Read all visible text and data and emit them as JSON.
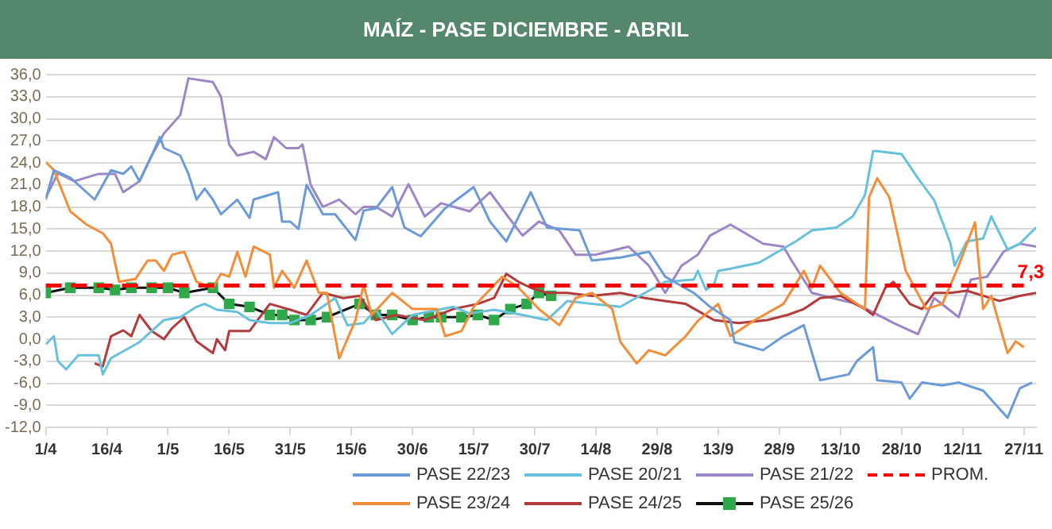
{
  "chart_data": {
    "type": "line",
    "title": "MAÍZ - PASE DICIEMBRE  - ABRIL",
    "xlim": [
      "--04-01",
      "--11-30"
    ],
    "xticks": [
      {
        "value": "--04-01",
        "label": "1/4"
      },
      {
        "value": "--04-16",
        "label": "16/4"
      },
      {
        "value": "--05-01",
        "label": "1/5"
      },
      {
        "value": "--05-16",
        "label": "16/5"
      },
      {
        "value": "--05-31",
        "label": "31/5"
      },
      {
        "value": "--06-15",
        "label": "15/6"
      },
      {
        "value": "--06-30",
        "label": "30/6"
      },
      {
        "value": "--07-15",
        "label": "15/7"
      },
      {
        "value": "--07-30",
        "label": "30/7"
      },
      {
        "value": "--08-14",
        "label": "14/8"
      },
      {
        "value": "--08-29",
        "label": "29/8"
      },
      {
        "value": "--09-13",
        "label": "13/9"
      },
      {
        "value": "--09-28",
        "label": "28/9"
      },
      {
        "value": "--10-13",
        "label": "13/10"
      },
      {
        "value": "--10-28",
        "label": "28/10"
      },
      {
        "value": "--11-12",
        "label": "12/11"
      },
      {
        "value": "--11-27",
        "label": "27/11"
      }
    ],
    "ylim": [
      -12,
      36
    ],
    "yticks": [
      {
        "value": -12,
        "label": "-12,0"
      },
      {
        "value": -9,
        "label": "-9,0"
      },
      {
        "value": -6,
        "label": "-6,0"
      },
      {
        "value": -3,
        "label": "-3,0"
      },
      {
        "value": 0,
        "label": "0,0"
      },
      {
        "value": 3,
        "label": "3,0"
      },
      {
        "value": 6,
        "label": "6,0"
      },
      {
        "value": 9,
        "label": "9,0"
      },
      {
        "value": 12,
        "label": "12,0"
      },
      {
        "value": 15,
        "label": "15,0"
      },
      {
        "value": 18,
        "label": "18,0"
      },
      {
        "value": 21,
        "label": "21,0"
      },
      {
        "value": 24,
        "label": "24,0"
      },
      {
        "value": 27,
        "label": "27,0"
      },
      {
        "value": 30,
        "label": "30,0"
      },
      {
        "value": 33,
        "label": "33,0"
      },
      {
        "value": 36,
        "label": "36,0"
      }
    ],
    "grid": "y",
    "legend": "bottom",
    "marker": "none",
    "series": [
      {
        "name": "PASE 22/23",
        "color": "#6b9bd6",
        "x": [
          "--04-01",
          "--04-03",
          "--04-07",
          "--04-13",
          "--04-17",
          "--04-20",
          "--04-22",
          "--04-24",
          "--04-27",
          "--04-29",
          "--04-30",
          "--05-04",
          "--05-06",
          "--05-08",
          "--05-10",
          "--05-12",
          "--05-14",
          "--05-18",
          "--05-21",
          "--05-22",
          "--05-28",
          "--05-29",
          "--05-31",
          "--06-02",
          "--06-04",
          "--06-08",
          "--06-11",
          "--06-16",
          "--06-18",
          "--06-21",
          "--06-25",
          "--06-28",
          "--07-02",
          "--07-08",
          "--07-15",
          "--07-19",
          "--07-23",
          "--07-29",
          "--08-02",
          "--08-10",
          "--08-13",
          "--08-20",
          "--08-27",
          "--08-31",
          "--09-07",
          "--09-11",
          "--09-16",
          "--09-17",
          "--09-24",
          "--09-29",
          "--10-04",
          "--10-08",
          "--10-15",
          "--10-17",
          "--10-21",
          "--10-22",
          "--10-28",
          "--10-30",
          "--11-02",
          "--11-07",
          "--11-11",
          "--11-17",
          "--11-23",
          "--11-26",
          "--11-29"
        ],
        "values": [
          19,
          23,
          22,
          19,
          23,
          22.5,
          23.5,
          21.5,
          25,
          27.5,
          26,
          25,
          22.5,
          19,
          20.5,
          19,
          17,
          19,
          16.5,
          19,
          20,
          16,
          16,
          15,
          21,
          17,
          17,
          13.5,
          17.5,
          17.8,
          20.7,
          15.2,
          14,
          17.8,
          20.7,
          16,
          13.3,
          20,
          15.2,
          14.8,
          10.7,
          11.1,
          11.9,
          8.5,
          6.3,
          4.4,
          2.6,
          -0.4,
          -1.5,
          0.4,
          1.9,
          -5.6,
          -4.8,
          -3,
          -1.1,
          -5.6,
          -5.9,
          -8.1,
          -5.9,
          -6.3,
          -5.9,
          -7,
          -10.7,
          -6.7,
          -5.9
        ]
      },
      {
        "name": "PASE 23/24",
        "color": "#f28e3a",
        "x": [
          "--04-01",
          "--04-03",
          "--04-07",
          "--04-11",
          "--04-15",
          "--04-17",
          "--04-19",
          "--04-23",
          "--04-26",
          "--04-28",
          "--04-30",
          "--05-02",
          "--05-05",
          "--05-08",
          "--05-12",
          "--05-14",
          "--05-16",
          "--05-18",
          "--05-20",
          "--05-22",
          "--05-26",
          "--05-27",
          "--05-29",
          "--06-01",
          "--06-04",
          "--06-07",
          "--06-09",
          "--06-12",
          "--06-16",
          "--06-18",
          "--06-20",
          "--06-25",
          "--06-30",
          "--07-06",
          "--07-08",
          "--07-12",
          "--07-15",
          "--07-17",
          "--07-22",
          "--07-26",
          "--07-31",
          "--08-05",
          "--08-09",
          "--08-13",
          "--08-18",
          "--08-20",
          "--08-24",
          "--08-27",
          "--08-31",
          "--09-05",
          "--09-08",
          "--09-13",
          "--09-16",
          "--09-22",
          "--09-29",
          "--10-04",
          "--10-06",
          "--10-08",
          "--10-13",
          "--10-19",
          "--10-20",
          "--10-22",
          "--10-25",
          "--10-29",
          "--11-03",
          "--11-07",
          "--11-11",
          "--11-15",
          "--11-17",
          "--11-19",
          "--11-23",
          "--11-25",
          "--11-27"
        ],
        "values": [
          24.1,
          23,
          17.4,
          15.6,
          14.4,
          13,
          7.8,
          8.2,
          10.7,
          10.7,
          9.3,
          11.5,
          11.9,
          7.8,
          7,
          8.9,
          8.5,
          11.9,
          8.5,
          12.6,
          11.5,
          7,
          9.3,
          7,
          10.7,
          6.3,
          6.3,
          -2.6,
          2.6,
          7.4,
          3.3,
          6.3,
          4.1,
          4.1,
          0.4,
          1.1,
          4.4,
          5.6,
          8.5,
          7,
          4.1,
          1.9,
          5.6,
          6.3,
          4.1,
          -0.4,
          -3.3,
          -1.5,
          -2.2,
          0.4,
          2.5,
          4.8,
          0.4,
          2.6,
          4.8,
          9.3,
          7,
          10,
          6.3,
          4.1,
          19.3,
          21.9,
          19.3,
          9.3,
          4.1,
          4.8,
          10,
          15.9,
          4.1,
          5.9,
          -1.9,
          -0.3,
          -1.1
        ]
      },
      {
        "name": "PASE 20/21",
        "color": "#68c1dc",
        "x": [
          "--04-01",
          "--04-03",
          "--04-04",
          "--04-06",
          "--04-09",
          "--04-14",
          "--04-15",
          "--04-17",
          "--04-24",
          "--04-30",
          "--05-04",
          "--05-08",
          "--05-10",
          "--05-13",
          "--05-18",
          "--05-21",
          "--05-26",
          "--05-31",
          "--06-05",
          "--06-11",
          "--06-14",
          "--06-18",
          "--06-21",
          "--06-25",
          "--06-30",
          "--07-10",
          "--07-14",
          "--07-20",
          "--07-27",
          "--08-02",
          "--08-07",
          "--08-13",
          "--08-20",
          "--08-26",
          "--08-31",
          "--09-07",
          "--09-08",
          "--09-10",
          "--09-12",
          "--09-13",
          "--09-16",
          "--09-23",
          "--10-02",
          "--10-06",
          "--10-12",
          "--10-16",
          "--10-19",
          "--10-21",
          "--10-22",
          "--10-28",
          "--11-01",
          "--11-05",
          "--11-09",
          "--11-10",
          "--11-13",
          "--11-17",
          "--11-19",
          "--11-23",
          "--11-26",
          "--11-30"
        ],
        "values": [
          -0.7,
          0.4,
          -3,
          -4.1,
          -2.2,
          -2.2,
          -4.8,
          -2.6,
          -0.4,
          2.6,
          3,
          4.4,
          4.8,
          4,
          3.7,
          2.6,
          2.2,
          2.2,
          3.3,
          5.6,
          1.9,
          2.2,
          4,
          0.7,
          3.3,
          4.4,
          3.5,
          4,
          3.3,
          2.6,
          5.2,
          4.8,
          4.4,
          6.3,
          7.8,
          8.1,
          9.3,
          6.7,
          7.5,
          9.3,
          9.6,
          10.4,
          13.3,
          14.8,
          15.2,
          16.7,
          19.6,
          25.6,
          25.6,
          25.2,
          21.9,
          18.9,
          13,
          10,
          13.3,
          13.7,
          16.7,
          12.2,
          13,
          15.2
        ]
      },
      {
        "name": "PASE 24/25",
        "color": "#b33b3b",
        "x": [
          "--04-13",
          "--04-15",
          "--04-17",
          "--04-20",
          "--04-22",
          "--04-24",
          "--04-27",
          "--04-30",
          "--05-02",
          "--05-05",
          "--05-08",
          "--05-12",
          "--05-13",
          "--05-15",
          "--05-16",
          "--05-21",
          "--05-23",
          "--05-26",
          "--05-31",
          "--06-04",
          "--06-08",
          "--06-13",
          "--06-17",
          "--06-21",
          "--06-26",
          "--07-03",
          "--07-10",
          "--07-16",
          "--07-20",
          "--07-23",
          "--07-26",
          "--07-29",
          "--08-02",
          "--08-07",
          "--08-13",
          "--08-20",
          "--08-26",
          "--08-31",
          "--09-05",
          "--09-12",
          "--09-18",
          "--09-25",
          "--09-30",
          "--10-04",
          "--10-08",
          "--10-13",
          "--10-19",
          "--10-21",
          "--10-24",
          "--10-26",
          "--10-30",
          "--11-02",
          "--11-05",
          "--11-09",
          "--11-13",
          "--11-17",
          "--11-21",
          "--11-26",
          "--11-30"
        ],
        "values": [
          -3.3,
          -3.7,
          0.4,
          1.2,
          0.4,
          3.3,
          1.1,
          0,
          1.5,
          3,
          -0.3,
          -1.9,
          0,
          -1.5,
          1.1,
          1.1,
          2.6,
          4.8,
          4,
          3.3,
          6.3,
          5.6,
          5.9,
          2.6,
          3.3,
          2.6,
          4.1,
          4.8,
          5.6,
          8.9,
          7.8,
          7,
          6.3,
          6.3,
          5.9,
          6.3,
          5.6,
          5.2,
          4.8,
          2.6,
          2.2,
          2.6,
          3.3,
          4.1,
          5.6,
          5.9,
          4.1,
          3.3,
          7,
          7.8,
          4.8,
          4.1,
          6.3,
          6.3,
          6.6,
          5.9,
          5.2,
          5.9,
          6.3
        ]
      },
      {
        "name": "PASE 21/22",
        "color": "#9d86c6",
        "x": [
          "--04-01",
          "--04-04",
          "--04-08",
          "--04-14",
          "--04-18",
          "--04-20",
          "--04-24",
          "--04-27",
          "--04-30",
          "--05-04",
          "--05-06",
          "--05-12",
          "--05-14",
          "--05-16",
          "--05-18",
          "--05-22",
          "--05-25",
          "--05-27",
          "--05-30",
          "--06-02",
          "--06-03",
          "--06-05",
          "--06-08",
          "--06-12",
          "--06-16",
          "--06-18",
          "--06-21",
          "--06-25",
          "--06-29",
          "--07-03",
          "--07-07",
          "--07-14",
          "--07-19",
          "--07-23",
          "--07-27",
          "--07-31",
          "--08-05",
          "--08-09",
          "--08-14",
          "--08-22",
          "--08-27",
          "--08-31",
          "--09-04",
          "--09-08",
          "--09-11",
          "--09-16",
          "--09-24",
          "--09-29",
          "--10-01",
          "--10-06",
          "--10-11",
          "--10-17",
          "--10-26",
          "--11-01",
          "--11-05",
          "--11-11",
          "--11-14",
          "--11-18",
          "--11-22",
          "--11-26",
          "--11-30"
        ],
        "values": [
          19.3,
          22.6,
          21.5,
          22.5,
          22.5,
          20,
          21.5,
          25,
          28,
          30.5,
          35.5,
          35,
          33,
          26.5,
          25,
          25.5,
          24.5,
          27.5,
          26,
          26,
          26.5,
          21,
          18,
          19,
          17,
          18,
          18,
          16.7,
          21.1,
          16.7,
          18.5,
          17.4,
          20,
          17,
          14.1,
          16,
          14.8,
          11.5,
          11.5,
          12.6,
          10,
          6.3,
          10,
          11.5,
          14.1,
          15.6,
          13,
          12.6,
          10.7,
          6.3,
          5.6,
          4.8,
          2.2,
          0.7,
          5.6,
          3,
          8.1,
          8.5,
          11.9,
          13,
          12.6
        ]
      },
      {
        "name": "PASE 25/26",
        "color": "#2fa84a",
        "marker": "square",
        "x": [
          "--04-01",
          "--04-07",
          "--04-14",
          "--04-18",
          "--04-22",
          "--04-27",
          "--05-01",
          "--05-05",
          "--05-12",
          "--05-16",
          "--05-21",
          "--05-26",
          "--05-29",
          "--06-01",
          "--06-05",
          "--06-09",
          "--06-17",
          "--06-21",
          "--06-25",
          "--06-30",
          "--07-04",
          "--07-07",
          "--07-12",
          "--07-16",
          "--07-20",
          "--07-24",
          "--07-28",
          "--07-31",
          "--08-03"
        ],
        "values": [
          6.3,
          7,
          7,
          6.7,
          7,
          7,
          7,
          6.3,
          7,
          4.8,
          4.4,
          3.3,
          3.3,
          2.6,
          2.6,
          3,
          4.8,
          3.3,
          3.3,
          2.6,
          3,
          3,
          3,
          3.3,
          2.6,
          4.1,
          4.8,
          6.3,
          5.9
        ]
      }
    ],
    "ref_lines": [
      {
        "axis": "y",
        "value": 7.3,
        "label": "PROM.",
        "color": "#ff0000",
        "line_style": "dashed"
      }
    ],
    "annotations": [
      {
        "text": "7,3",
        "x": "--11-27",
        "y": 7.3
      }
    ]
  }
}
